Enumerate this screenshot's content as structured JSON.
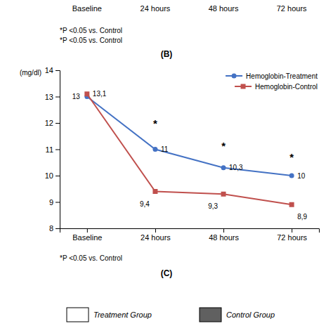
{
  "chart_data": {
    "type": "line",
    "categories": [
      "Baseline",
      "24 hours",
      "48 hours",
      "72 hours"
    ],
    "series": [
      {
        "name": "Hemoglobin-Treatment",
        "color": "#4472C4",
        "marker": "circle",
        "line_style": "solid",
        "values": [
          13.0,
          11.0,
          10.3,
          10.0
        ],
        "value_labels": [
          "13",
          "11",
          "10,3",
          "10"
        ]
      },
      {
        "name": "Hemoglobin-Control",
        "color": "#C0504D",
        "marker": "square",
        "line_style": "solid",
        "values": [
          13.1,
          9.4,
          9.3,
          8.9
        ],
        "value_labels": [
          "13,1",
          "9,4",
          "9,3",
          "8,9"
        ]
      }
    ],
    "data_labels": true,
    "ylim": [
      8,
      14
    ],
    "yticks": [
      8,
      9,
      10,
      11,
      12,
      13,
      14
    ],
    "y_label": "(mg/dl)",
    "grid": false,
    "legend": "upper right",
    "annotations": [
      {
        "text": "*",
        "x": "24 hours",
        "y": 11.85
      },
      {
        "text": "*",
        "x": "48 hours",
        "y": 11.0
      },
      {
        "text": "*",
        "x": "72 hours",
        "y": 10.55
      }
    ],
    "top_categories": [
      "Baseline",
      "24 hours",
      "48 hours",
      "72 hours"
    ],
    "notes_top": [
      "*P <0.05 vs. Control",
      "*P <0.05 vs. Control"
    ],
    "panel_labels": [
      "(B)",
      "(C)"
    ],
    "note_bottom": "*P <0.05 vs. Control",
    "legend_boxes": [
      {
        "name": "Treatment Group",
        "color": "#ffffff"
      },
      {
        "name": "Control Group",
        "color": "#606060"
      }
    ]
  }
}
